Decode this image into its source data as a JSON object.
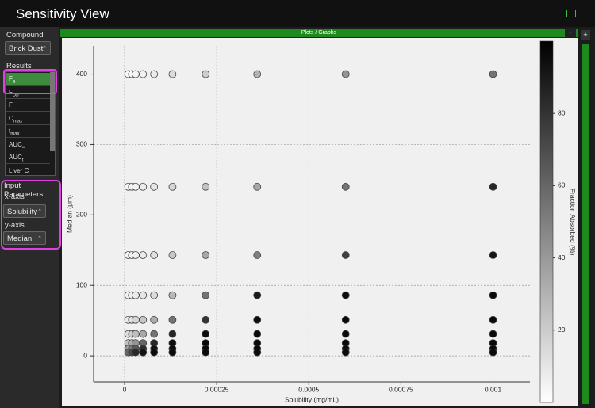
{
  "header": {
    "title": "Sensitivity View"
  },
  "sidebar": {
    "compound_label": "Compound",
    "compound_value": "Brick Dust",
    "results_label": "Results",
    "results": [
      {
        "text": "F",
        "sub": "a"
      },
      {
        "text": "F",
        "sub": "Dp"
      },
      {
        "text": "F"
      },
      {
        "text": "C",
        "sub": "max"
      },
      {
        "text": "t",
        "sub": "max"
      },
      {
        "text": "AUC",
        "sub": "∞"
      },
      {
        "text": "AUC",
        "sub": "t"
      },
      {
        "text": "Liver C"
      }
    ],
    "input_label": "Input Parameters",
    "xaxis_label": "x-axis",
    "xaxis_value": "Solubility",
    "yaxis_label": "y-axis",
    "yaxis_value": "Median"
  },
  "panel": {
    "title": "Plots / Graphs",
    "collapse": "-",
    "expand": "+"
  },
  "chart_data": {
    "type": "scatter",
    "x_label": "Solubility (mg/mL)",
    "y_label": "Median (μm)",
    "colorbar_label": "Fraction Absorbed (%)",
    "x": [
      1e-05,
      2e-05,
      3e-05,
      5e-05,
      8e-05,
      0.00013,
      0.00022,
      0.00036,
      0.0006,
      0.001
    ],
    "y": [
      400,
      240,
      143,
      86,
      51,
      31,
      18,
      10,
      5
    ],
    "values": [
      [
        2,
        3,
        4,
        5,
        8,
        14,
        20,
        30,
        42,
        55
      ],
      [
        3,
        4,
        5,
        7,
        10,
        16,
        24,
        34,
        55,
        85
      ],
      [
        4,
        5,
        6,
        8,
        12,
        22,
        34,
        50,
        75,
        92
      ],
      [
        5,
        6,
        8,
        10,
        14,
        28,
        55,
        90,
        95,
        96
      ],
      [
        8,
        12,
        16,
        22,
        32,
        55,
        80,
        95,
        96,
        96
      ],
      [
        14,
        20,
        26,
        34,
        55,
        85,
        95,
        96,
        96,
        96
      ],
      [
        25,
        32,
        42,
        60,
        85,
        95,
        96,
        96,
        96,
        96
      ],
      [
        40,
        52,
        65,
        82,
        94,
        96,
        96,
        96,
        96,
        96
      ],
      [
        60,
        72,
        84,
        92,
        96,
        96,
        96,
        96,
        96,
        96
      ]
    ],
    "xlim": [
      -8.4e-05,
      0.0011
    ],
    "ylim": [
      -37,
      440
    ],
    "xticks": [
      0,
      0.00025,
      0.0005,
      0.00075,
      0.001
    ],
    "yticks": [
      0,
      100,
      200,
      300,
      400
    ],
    "clim": [
      0,
      100
    ],
    "cticks": [
      20,
      40,
      60,
      80
    ],
    "colormap": [
      "#ffffff",
      "#000000"
    ],
    "grid": true
  }
}
